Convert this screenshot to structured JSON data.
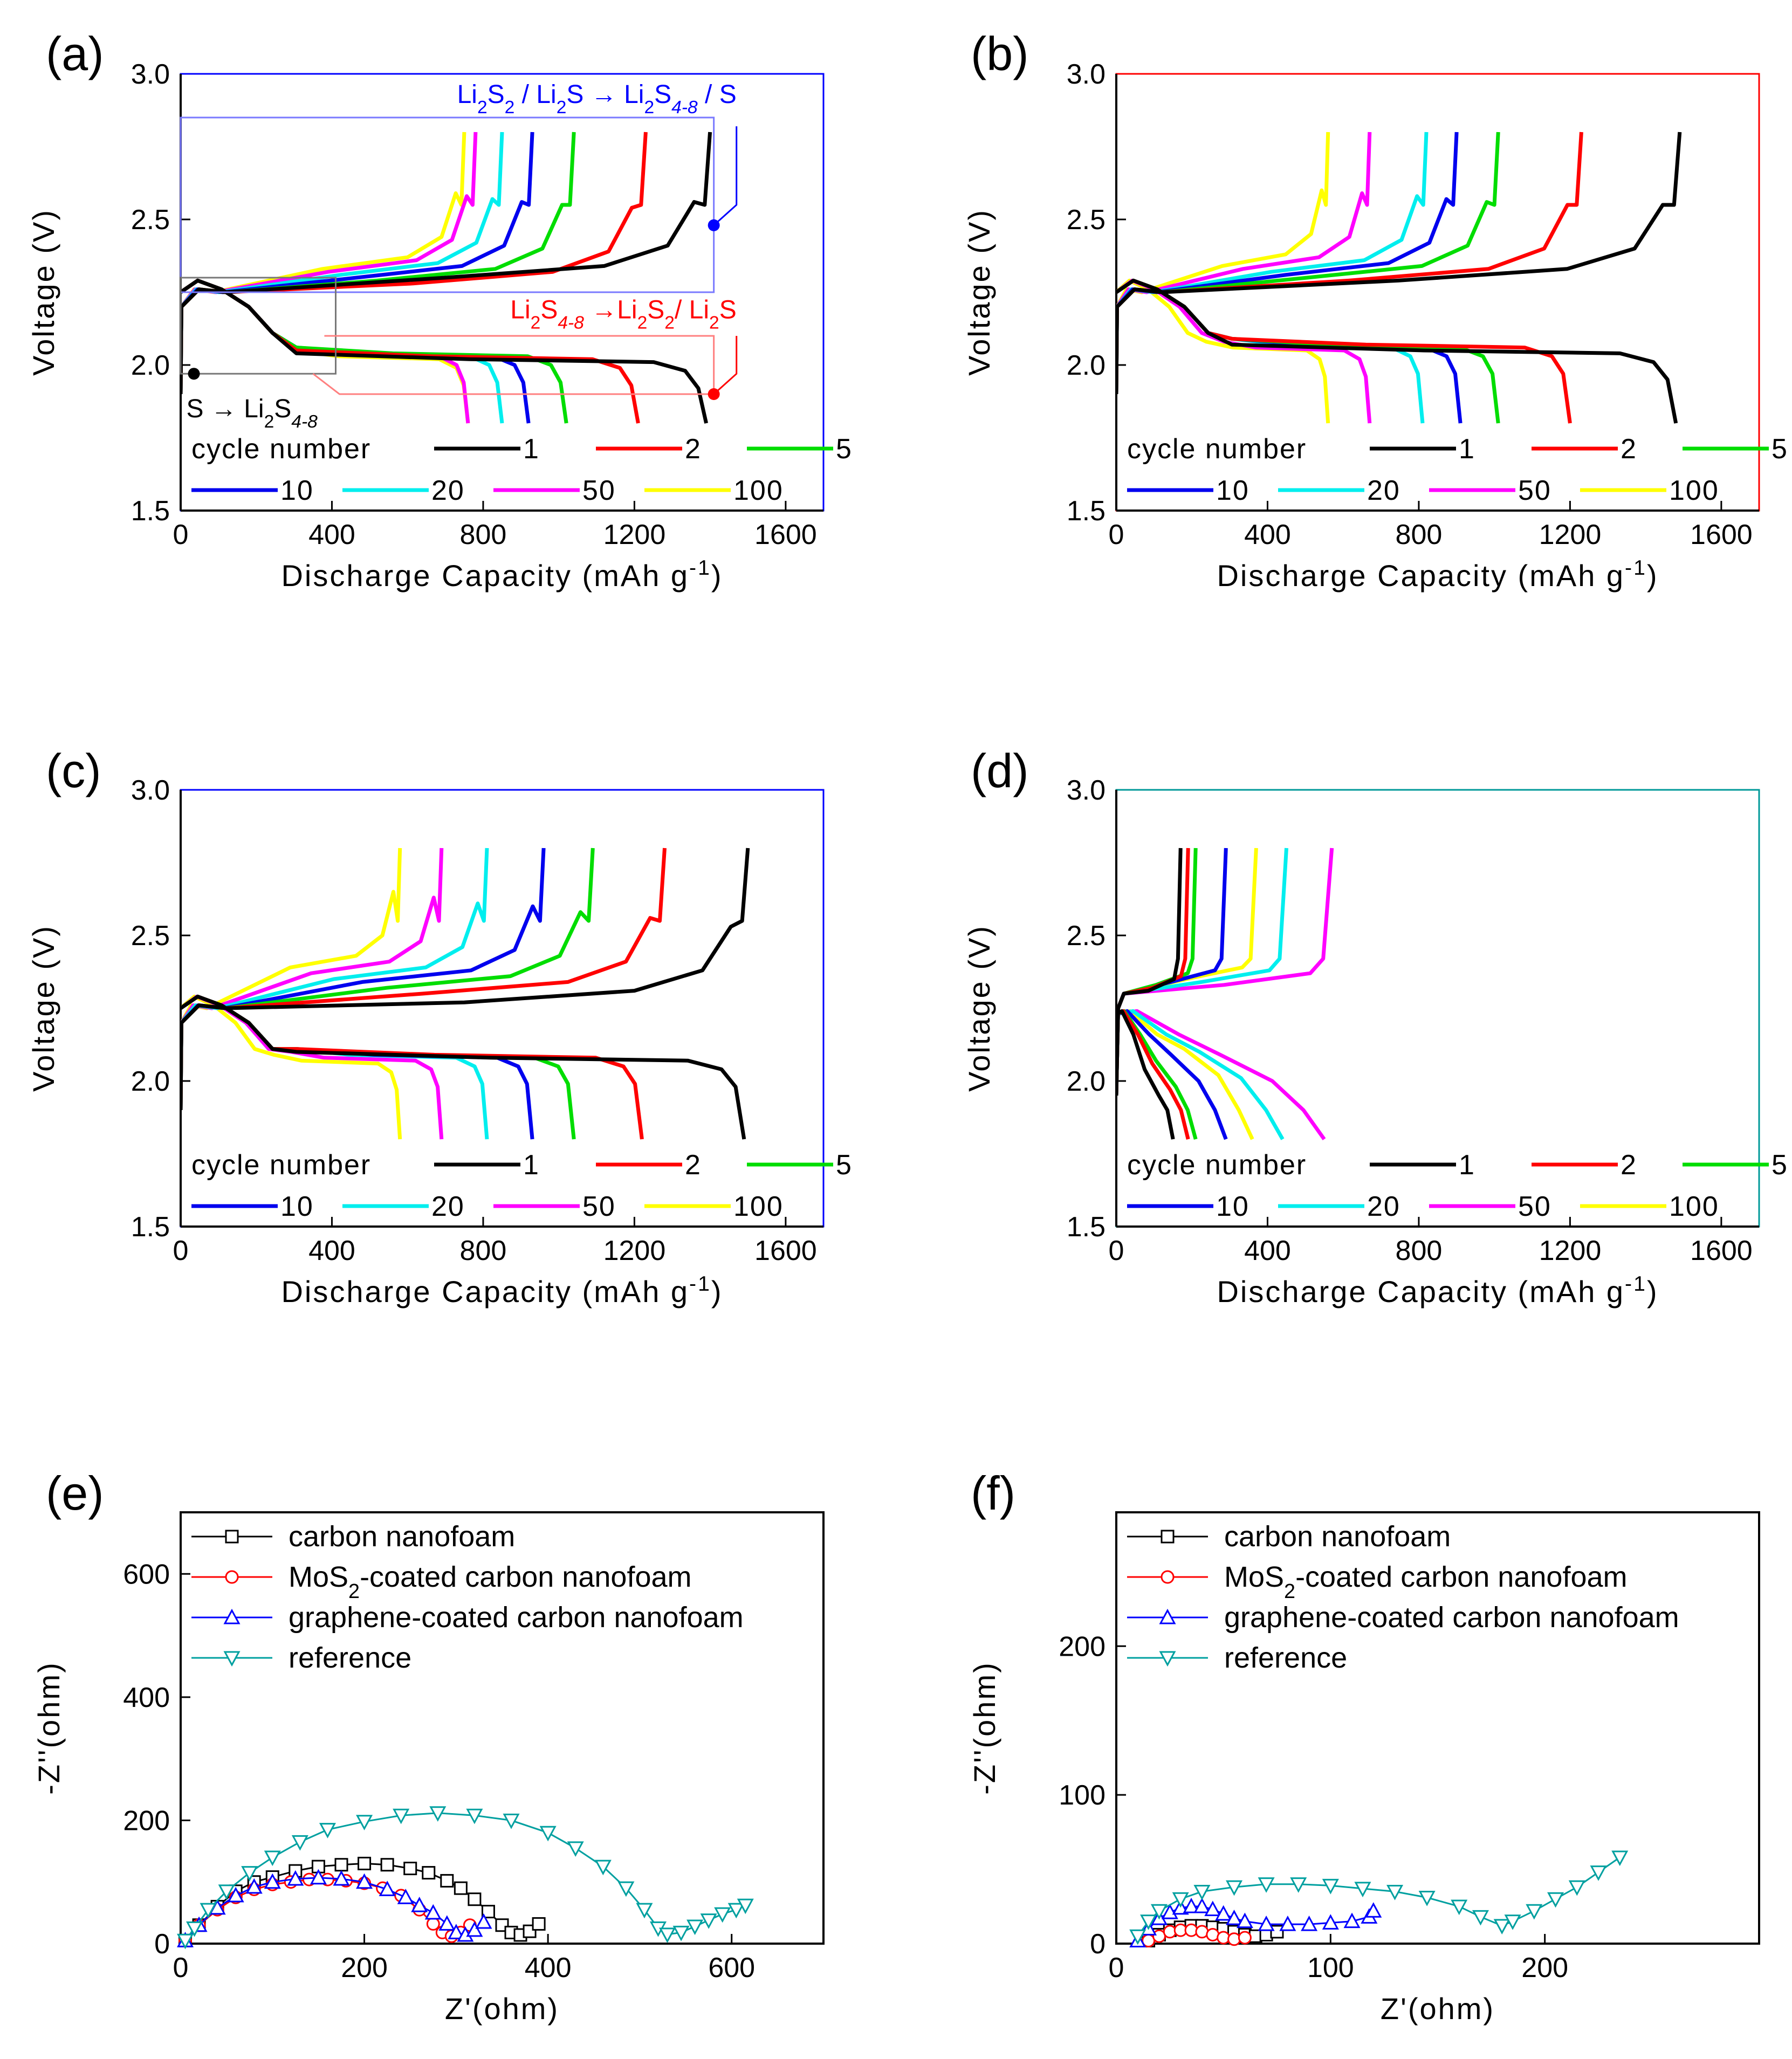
{
  "figure_labels": {
    "a": "(a)",
    "b": "(b)",
    "c": "(c)",
    "d": "(d)",
    "e": "(e)",
    "f": "(f)"
  },
  "cycle_colors": {
    "1": "#000000",
    "2": "#ff0000",
    "5": "#00dd00",
    "10": "#0000ee",
    "20": "#00eeee",
    "50": "#ff00ff",
    "100": "#ffff00"
  },
  "legend_title": "cycle number",
  "annotations": {
    "blue_text": "Li2S2 / Li2S → Li2S4-8 / S",
    "red_text": "Li2S4-8 →Li2S2/ Li2S",
    "black_text": "S → Li2S4-8"
  },
  "chart_data": [
    {
      "panel": "a",
      "type": "line",
      "frame_color": "#0000ff",
      "xlabel": "Discharge Capacity (mAh g-1)",
      "ylabel": "Voltage (V)",
      "xlim": [
        0,
        1700
      ],
      "ylim": [
        1.5,
        3.0
      ],
      "xticks": [
        0,
        400,
        800,
        1200,
        1600
      ],
      "yticks": [
        1.5,
        2.0,
        2.5,
        3.0
      ],
      "cycles": [
        {
          "cycle": "1",
          "discharge_capacity": 1390,
          "charge_capacity": 1400,
          "plateau_low": 2.01,
          "plateau_high": 2.31
        },
        {
          "cycle": "2",
          "discharge_capacity": 1210,
          "charge_capacity": 1230,
          "plateau_low": 2.02,
          "plateau_high": 2.29
        },
        {
          "cycle": "5",
          "discharge_capacity": 1020,
          "charge_capacity": 1040,
          "plateau_low": 2.03,
          "plateau_high": 2.3
        },
        {
          "cycle": "10",
          "discharge_capacity": 920,
          "charge_capacity": 930,
          "plateau_low": 2.03,
          "plateau_high": 2.31
        },
        {
          "cycle": "20",
          "discharge_capacity": 850,
          "charge_capacity": 850,
          "plateau_low": 2.03,
          "plateau_high": 2.32
        },
        {
          "cycle": "50",
          "discharge_capacity": 760,
          "charge_capacity": 780,
          "plateau_low": 2.03,
          "plateau_high": 2.33
        },
        {
          "cycle": "100",
          "discharge_capacity": 760,
          "charge_capacity": 750,
          "plateau_low": 2.02,
          "plateau_high": 2.34
        }
      ]
    },
    {
      "panel": "b",
      "type": "line",
      "frame_color": "#ff0000",
      "xlabel": "Discharge Capacity (mAh g-1)",
      "ylabel": "Voltage (V)",
      "xlim": [
        0,
        1700
      ],
      "ylim": [
        1.5,
        3.0
      ],
      "xticks": [
        0,
        400,
        800,
        1200,
        1600
      ],
      "yticks": [
        1.5,
        2.0,
        2.5,
        3.0
      ],
      "cycles": [
        {
          "cycle": "1",
          "discharge_capacity": 1480,
          "charge_capacity": 1490,
          "plateau_low": 2.04,
          "plateau_high": 2.3
        },
        {
          "cycle": "2",
          "discharge_capacity": 1200,
          "charge_capacity": 1230,
          "plateau_low": 2.06,
          "plateau_high": 2.3
        },
        {
          "cycle": "5",
          "discharge_capacity": 1010,
          "charge_capacity": 1010,
          "plateau_low": 2.06,
          "plateau_high": 2.31
        },
        {
          "cycle": "10",
          "discharge_capacity": 910,
          "charge_capacity": 900,
          "plateau_low": 2.06,
          "plateau_high": 2.32
        },
        {
          "cycle": "20",
          "discharge_capacity": 810,
          "charge_capacity": 820,
          "plateau_low": 2.06,
          "plateau_high": 2.33
        },
        {
          "cycle": "50",
          "discharge_capacity": 670,
          "charge_capacity": 670,
          "plateau_low": 2.05,
          "plateau_high": 2.34
        },
        {
          "cycle": "100",
          "discharge_capacity": 560,
          "charge_capacity": 560,
          "plateau_low": 2.05,
          "plateau_high": 2.35
        }
      ]
    },
    {
      "panel": "c",
      "type": "line",
      "frame_color": "#0000ff",
      "xlabel": "Discharge Capacity (mAh g-1)",
      "ylabel": "Voltage (V)",
      "xlim": [
        0,
        1700
      ],
      "ylim": [
        1.5,
        3.0
      ],
      "xticks": [
        0,
        400,
        800,
        1200,
        1600
      ],
      "yticks": [
        1.5,
        2.0,
        2.5,
        3.0
      ],
      "cycles": [
        {
          "cycle": "1",
          "discharge_capacity": 1490,
          "charge_capacity": 1500,
          "plateau_low": 2.07,
          "plateau_high": 2.28
        },
        {
          "cycle": "2",
          "discharge_capacity": 1220,
          "charge_capacity": 1280,
          "plateau_low": 2.08,
          "plateau_high": 2.31
        },
        {
          "cycle": "5",
          "discharge_capacity": 1040,
          "charge_capacity": 1090,
          "plateau_low": 2.08,
          "plateau_high": 2.33
        },
        {
          "cycle": "10",
          "discharge_capacity": 930,
          "charge_capacity": 960,
          "plateau_low": 2.08,
          "plateau_high": 2.35
        },
        {
          "cycle": "20",
          "discharge_capacity": 810,
          "charge_capacity": 810,
          "plateau_low": 2.08,
          "plateau_high": 2.36
        },
        {
          "cycle": "50",
          "discharge_capacity": 690,
          "charge_capacity": 690,
          "plateau_low": 2.07,
          "plateau_high": 2.38
        },
        {
          "cycle": "100",
          "discharge_capacity": 580,
          "charge_capacity": 580,
          "plateau_low": 2.06,
          "plateau_high": 2.4
        }
      ]
    },
    {
      "panel": "d",
      "type": "line",
      "frame_color": "#009999",
      "xlabel": "Discharge Capacity (mAh g-1)",
      "ylabel": "Voltage (V)",
      "xlim": [
        0,
        1700
      ],
      "ylim": [
        1.5,
        3.0
      ],
      "xticks": [
        0,
        400,
        800,
        1200,
        1600
      ],
      "yticks": [
        1.5,
        2.0,
        2.5,
        3.0
      ],
      "cycles": [
        {
          "cycle": "1",
          "discharge_capacity": 150,
          "charge_capacity": 170,
          "plateau_low": 2.0,
          "plateau_high": 2.35
        },
        {
          "cycle": "2",
          "discharge_capacity": 190,
          "charge_capacity": 190,
          "plateau_low": 2.02,
          "plateau_high": 2.36
        },
        {
          "cycle": "5",
          "discharge_capacity": 210,
          "charge_capacity": 210,
          "plateau_low": 2.03,
          "plateau_high": 2.37
        },
        {
          "cycle": "10",
          "discharge_capacity": 290,
          "charge_capacity": 290,
          "plateau_low": 2.05,
          "plateau_high": 2.38
        },
        {
          "cycle": "20",
          "discharge_capacity": 440,
          "charge_capacity": 450,
          "plateau_low": 2.06,
          "plateau_high": 2.38
        },
        {
          "cycle": "50",
          "discharge_capacity": 550,
          "charge_capacity": 570,
          "plateau_low": 2.05,
          "plateau_high": 2.37
        },
        {
          "cycle": "100",
          "discharge_capacity": 360,
          "charge_capacity": 370,
          "plateau_low": 2.07,
          "plateau_high": 2.39
        }
      ]
    },
    {
      "panel": "e",
      "type": "scatter",
      "xlabel": "Z'(ohm)",
      "ylabel": "-Z''(ohm)",
      "xlim": [
        0,
        700
      ],
      "ylim": [
        0,
        700
      ],
      "xticks": [
        0,
        200,
        400,
        600
      ],
      "yticks": [
        0,
        200,
        400,
        600
      ],
      "series": [
        {
          "name": "carbon nanofoam",
          "color": "#000000",
          "marker": "square",
          "x": [
            5,
            20,
            40,
            60,
            80,
            100,
            125,
            150,
            175,
            200,
            225,
            250,
            270,
            290,
            305,
            320,
            335,
            350,
            360,
            370,
            380,
            390
          ],
          "y": [
            5,
            30,
            60,
            85,
            100,
            108,
            118,
            125,
            128,
            130,
            128,
            122,
            115,
            102,
            90,
            72,
            52,
            30,
            18,
            14,
            20,
            32
          ]
        },
        {
          "name": "MoS2-coated carbon nanofoam",
          "color": "#ff0000",
          "marker": "circle",
          "x": [
            5,
            20,
            40,
            60,
            80,
            100,
            120,
            140,
            160,
            180,
            200,
            220,
            240,
            260,
            275,
            285,
            295,
            305,
            315
          ],
          "y": [
            5,
            30,
            55,
            75,
            88,
            96,
            100,
            104,
            104,
            102,
            98,
            90,
            78,
            55,
            32,
            18,
            12,
            18,
            30
          ]
        },
        {
          "name": "graphene-coated carbon nanofoam",
          "color": "#0000ff",
          "marker": "triangle-up",
          "x": [
            5,
            20,
            40,
            60,
            80,
            100,
            125,
            150,
            175,
            200,
            225,
            245,
            260,
            275,
            290,
            300,
            310,
            320,
            330
          ],
          "y": [
            5,
            30,
            58,
            78,
            92,
            100,
            105,
            107,
            105,
            100,
            88,
            75,
            62,
            50,
            32,
            18,
            14,
            22,
            35
          ]
        },
        {
          "name": "reference",
          "color": "#00a0a0",
          "marker": "triangle-down",
          "x": [
            5,
            15,
            30,
            50,
            75,
            100,
            130,
            160,
            200,
            240,
            280,
            320,
            360,
            400,
            430,
            460,
            485,
            505,
            520,
            530,
            545,
            560,
            575,
            590,
            605,
            615
          ],
          "y": [
            5,
            25,
            55,
            85,
            115,
            140,
            165,
            185,
            198,
            208,
            212,
            208,
            200,
            180,
            155,
            125,
            90,
            55,
            25,
            15,
            18,
            28,
            38,
            48,
            55,
            62
          ]
        }
      ]
    },
    {
      "panel": "f",
      "type": "scatter",
      "xlabel": "Z'(ohm)",
      "ylabel": "-Z''(ohm)",
      "xlim": [
        0,
        300
      ],
      "ylim": [
        0,
        290
      ],
      "xticks": [
        0,
        100,
        200
      ],
      "yticks": [
        0,
        100,
        200
      ],
      "series": [
        {
          "name": "carbon nanofoam",
          "color": "#000000",
          "marker": "square",
          "x": [
            15,
            20,
            25,
            30,
            35,
            40,
            45,
            50,
            55,
            60,
            65,
            70,
            75
          ],
          "y": [
            2,
            6,
            9,
            11,
            12,
            12,
            11,
            10,
            8,
            6,
            5,
            6,
            8
          ]
        },
        {
          "name": "MoS2-coated carbon nanofoam",
          "color": "#ff0000",
          "marker": "circle",
          "x": [
            15,
            20,
            25,
            30,
            35,
            40,
            45,
            50,
            55,
            60
          ],
          "y": [
            2,
            5,
            8,
            9,
            9,
            8,
            6,
            4,
            3,
            4
          ]
        },
        {
          "name": "graphene-coated carbon nanofoam",
          "color": "#0000ff",
          "marker": "triangle-up",
          "x": [
            10,
            15,
            20,
            25,
            30,
            35,
            40,
            45,
            50,
            55,
            60,
            70,
            80,
            90,
            100,
            110,
            118,
            120
          ],
          "y": [
            2,
            10,
            17,
            21,
            24,
            25,
            25,
            23,
            20,
            17,
            15,
            13,
            13,
            13,
            14,
            15,
            18,
            22
          ]
        },
        {
          "name": "reference",
          "color": "#00a0a0",
          "marker": "triangle-down",
          "x": [
            10,
            15,
            20,
            30,
            40,
            55,
            70,
            85,
            100,
            115,
            130,
            145,
            160,
            170,
            180,
            185,
            195,
            205,
            215,
            225,
            235
          ],
          "y": [
            5,
            15,
            22,
            30,
            35,
            38,
            40,
            40,
            39,
            37,
            35,
            31,
            25,
            18,
            12,
            15,
            22,
            30,
            38,
            48,
            58
          ]
        }
      ]
    }
  ]
}
